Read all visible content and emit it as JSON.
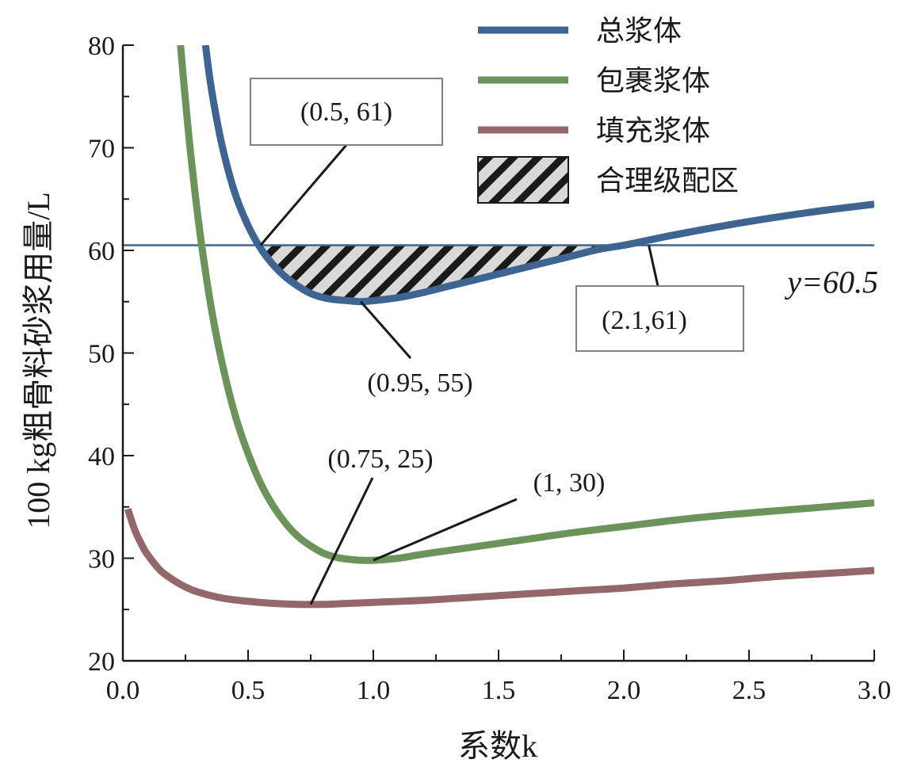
{
  "chart_data": {
    "type": "line",
    "xlabel": "系数k",
    "ylabel": "100 kg粗骨料砂浆用量/L",
    "xlim": [
      0.0,
      3.0
    ],
    "ylim": [
      20,
      80
    ],
    "xticks": [
      "0.0",
      "0.5",
      "1.0",
      "1.5",
      "2.0",
      "2.5",
      "3.0"
    ],
    "yticks": [
      "20",
      "30",
      "40",
      "50",
      "60",
      "70",
      "80"
    ],
    "legend_position": "top-right",
    "series": [
      {
        "name": "总浆体",
        "color": "#3e6591",
        "x": [
          0.33,
          0.35,
          0.38,
          0.41,
          0.45,
          0.5,
          0.55,
          0.6,
          0.65,
          0.7,
          0.75,
          0.8,
          0.85,
          0.9,
          0.95,
          1.0,
          1.1,
          1.2,
          1.3,
          1.4,
          1.5,
          1.6,
          1.7,
          1.8,
          1.9,
          2.0,
          2.1,
          2.2,
          2.4,
          2.6,
          2.8,
          3.0
        ],
        "values": [
          80,
          76.3,
          72.1,
          68.8,
          65.4,
          62.4,
          60.2,
          58.6,
          57.4,
          56.5,
          55.8,
          55.4,
          55.2,
          55.1,
          55.0,
          55.1,
          55.4,
          55.9,
          56.5,
          57.1,
          57.7,
          58.3,
          58.9,
          59.5,
          60.1,
          60.5,
          61.0,
          61.5,
          62.4,
          63.2,
          63.9,
          64.5
        ]
      },
      {
        "name": "包裹浆体",
        "color": "#6c9359",
        "x": [
          0.23,
          0.25,
          0.27,
          0.3,
          0.33,
          0.36,
          0.4,
          0.45,
          0.5,
          0.55,
          0.6,
          0.65,
          0.7,
          0.75,
          0.8,
          0.85,
          0.9,
          0.95,
          1.0,
          1.1,
          1.2,
          1.4,
          1.6,
          1.8,
          2.0,
          2.2,
          2.4,
          2.6,
          2.8,
          3.0
        ],
        "values": [
          80,
          74.6,
          69.6,
          63.2,
          57.9,
          53.4,
          48.6,
          43.8,
          40.2,
          37.3,
          35.1,
          33.4,
          32.1,
          31.2,
          30.5,
          30.1,
          29.9,
          29.8,
          29.8,
          30.0,
          30.4,
          31.1,
          31.8,
          32.5,
          33.1,
          33.7,
          34.2,
          34.6,
          35.0,
          35.4
        ]
      },
      {
        "name": "填充浆体",
        "color": "#94686a",
        "x": [
          0.02,
          0.03,
          0.05,
          0.08,
          0.1,
          0.15,
          0.2,
          0.25,
          0.3,
          0.4,
          0.5,
          0.6,
          0.7,
          0.75,
          0.8,
          0.9,
          1.0,
          1.2,
          1.4,
          1.6,
          1.8,
          2.0,
          2.2,
          2.4,
          2.6,
          2.8,
          3.0
        ],
        "values": [
          34.8,
          34.0,
          32.6,
          31.1,
          30.3,
          28.8,
          27.9,
          27.2,
          26.7,
          26.1,
          25.8,
          25.6,
          25.5,
          25.5,
          25.5,
          25.6,
          25.7,
          25.9,
          26.2,
          26.5,
          26.8,
          27.1,
          27.5,
          27.8,
          28.2,
          28.5,
          28.8
        ]
      }
    ],
    "hline": {
      "y": 60.5,
      "label": "y=60.5",
      "color": "#3e6591"
    },
    "shaded_region": {
      "name": "合理级配区",
      "x_range": [
        0.55,
        2.1
      ],
      "upper": 60.5,
      "lower_series": "总浆体"
    },
    "annotations": [
      {
        "text": "(0.5, 61)",
        "point": [
          0.55,
          60.5
        ],
        "boxed": true
      },
      {
        "text": "(0.95, 55)",
        "point": [
          0.95,
          55.0
        ],
        "boxed": false
      },
      {
        "text": "(2.1,61)",
        "point": [
          2.1,
          60.5
        ],
        "boxed": true
      },
      {
        "text": "(0.75, 25)",
        "point": [
          0.75,
          25.5
        ],
        "boxed": false
      },
      {
        "text": "(1, 30)",
        "point": [
          1.0,
          29.8
        ],
        "boxed": false
      }
    ],
    "legend": [
      {
        "label": "总浆体",
        "kind": "line",
        "color": "#3e6591"
      },
      {
        "label": "包裹浆体",
        "kind": "line",
        "color": "#6c9359"
      },
      {
        "label": "填充浆体",
        "kind": "line",
        "color": "#94686a"
      },
      {
        "label": "合理级配区",
        "kind": "hatch"
      }
    ]
  }
}
